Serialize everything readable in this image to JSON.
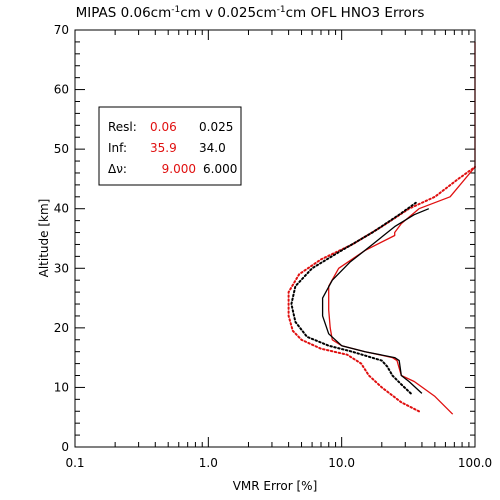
{
  "chart_data": {
    "type": "line",
    "title": {
      "part1": "MIPAS 0.06cm",
      "sup1": "-1",
      "part2": "cm v 0.025cm",
      "sup2": "-1",
      "part3": "cm OFL HNO3 Errors"
    },
    "xlabel": "VMR Error [%]",
    "ylabel": "Altitude [km]",
    "xscale": "log",
    "xlim": [
      0.1,
      100
    ],
    "ylim": [
      0,
      70
    ],
    "xticks": [
      {
        "value": 0.1,
        "label": "0.1"
      },
      {
        "value": 1,
        "label": "1.0"
      },
      {
        "value": 10,
        "label": "10.0"
      },
      {
        "value": 100,
        "label": "100.0"
      }
    ],
    "yticks": [
      {
        "value": 0,
        "label": "0"
      },
      {
        "value": 10,
        "label": "10"
      },
      {
        "value": 20,
        "label": "20"
      },
      {
        "value": 30,
        "label": "30"
      },
      {
        "value": 40,
        "label": "40"
      },
      {
        "value": 50,
        "label": "50"
      },
      {
        "value": 60,
        "label": "60"
      },
      {
        "value": 70,
        "label": "70"
      }
    ],
    "legend": {
      "placement": "top-left",
      "rows": [
        {
          "label": "Resl:",
          "v1": "0.06",
          "v2": "0.025"
        },
        {
          "label": "Inf:",
          "v1": "35.9",
          "v2": "34.0"
        },
        {
          "label": "Δν:",
          "v1": "9.000",
          "v2": "6.000"
        }
      ]
    },
    "colors": {
      "red": "#e01010",
      "black": "#000000"
    },
    "series": [
      {
        "color": "red",
        "style": "solid",
        "points": [
          [
            68,
            5.5
          ],
          [
            50,
            8.5
          ],
          [
            35,
            11
          ],
          [
            28,
            12
          ],
          [
            26,
            14.5
          ],
          [
            24,
            15
          ],
          [
            15,
            16
          ],
          [
            10,
            17
          ],
          [
            8.5,
            18
          ],
          [
            8.2,
            20
          ],
          [
            8.0,
            23
          ],
          [
            8.0,
            27
          ],
          [
            9.5,
            30
          ],
          [
            15,
            33
          ],
          [
            25,
            35.5
          ],
          [
            25,
            36
          ],
          [
            28,
            37.5
          ],
          [
            38,
            40
          ],
          [
            65,
            42
          ],
          [
            100,
            47
          ],
          [
            100,
            52
          ],
          [
            100,
            60
          ],
          [
            100,
            68
          ]
        ]
      },
      {
        "color": "black",
        "style": "solid",
        "points": [
          [
            40,
            9
          ],
          [
            32,
            11
          ],
          [
            28,
            12
          ],
          [
            27,
            14.5
          ],
          [
            25,
            15
          ],
          [
            15,
            16
          ],
          [
            10,
            17
          ],
          [
            8,
            19
          ],
          [
            7.2,
            22
          ],
          [
            7.2,
            25
          ],
          [
            8.5,
            28
          ],
          [
            11.5,
            31
          ],
          [
            17,
            34
          ],
          [
            25,
            37
          ],
          [
            35,
            39
          ],
          [
            45,
            40
          ]
        ]
      },
      {
        "color": "red",
        "style": "dotted",
        "points": [
          [
            38,
            6
          ],
          [
            28,
            7.5
          ],
          [
            20,
            10
          ],
          [
            16,
            12
          ],
          [
            14,
            14
          ],
          [
            11,
            15.5
          ],
          [
            7,
            16.5
          ],
          [
            5,
            18
          ],
          [
            4.3,
            19.5
          ],
          [
            4,
            22
          ],
          [
            4,
            26
          ],
          [
            4.8,
            29
          ],
          [
            7,
            31.5
          ],
          [
            12,
            34
          ],
          [
            20,
            37
          ],
          [
            32,
            40
          ],
          [
            50,
            42
          ],
          [
            75,
            45
          ],
          [
            100,
            47
          ]
        ]
      },
      {
        "color": "black",
        "style": "dotted",
        "points": [
          [
            33,
            9
          ],
          [
            28,
            10.5
          ],
          [
            24,
            12
          ],
          [
            22,
            13.5
          ],
          [
            20,
            14.5
          ],
          [
            12,
            16
          ],
          [
            8,
            17
          ],
          [
            5.5,
            18.5
          ],
          [
            4.5,
            21
          ],
          [
            4.2,
            24
          ],
          [
            4.5,
            27
          ],
          [
            6,
            30
          ],
          [
            10,
            33
          ],
          [
            17,
            36
          ],
          [
            27,
            39
          ],
          [
            36,
            41
          ]
        ]
      }
    ]
  }
}
